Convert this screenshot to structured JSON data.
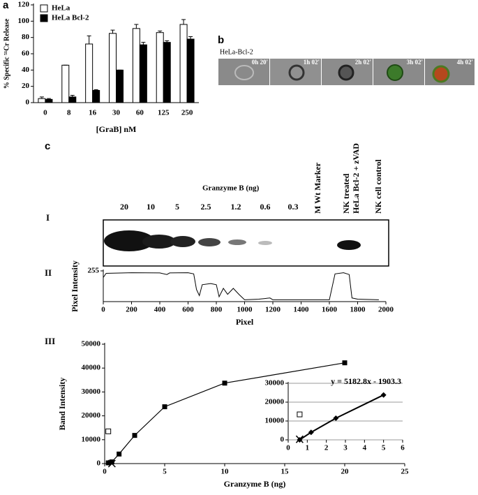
{
  "panel_labels": [
    "a",
    "b",
    "c",
    "I",
    "II",
    "III"
  ],
  "microscopy": {
    "title": "HeLa-Bcl-2",
    "timestamps": [
      "0h 20'",
      "1h 02'",
      "2h 02'",
      "3h 02'",
      "4h 02'"
    ]
  },
  "gel": {
    "title": "Granzyme B (ng)",
    "lanes": [
      "20",
      "10",
      "5",
      "2.5",
      "1.2",
      "0.6",
      "0.3"
    ],
    "marker": "M Wt Marker",
    "treated": [
      "NK treated",
      "HeLa Bcl-2 + zVAD"
    ],
    "control": "NK cell control"
  },
  "chart_data": [
    {
      "type": "bar",
      "xlabel": "[GraB] nM",
      "ylabel": "% Specific ⁵¹Cr Release",
      "categories": [
        "0",
        "8",
        "16",
        "30",
        "60",
        "125",
        "250"
      ],
      "series": [
        {
          "name": "HeLa",
          "color": "#ffffff",
          "values": [
            5,
            46,
            72,
            85,
            91,
            86,
            96
          ],
          "errors": [
            2,
            0,
            10,
            4,
            5,
            2,
            6
          ]
        },
        {
          "name": "HeLa Bcl-2",
          "color": "#000000",
          "values": [
            4,
            7,
            15,
            40,
            71,
            74,
            78
          ],
          "errors": [
            1,
            2,
            1,
            0,
            3,
            2,
            3
          ]
        }
      ],
      "ylim": [
        0,
        120
      ],
      "yticks": [
        0,
        20,
        40,
        60,
        80,
        100,
        120
      ],
      "legend": "top-left"
    },
    {
      "type": "line",
      "xlabel": "Pixel",
      "ylabel": "Pixel Intensity",
      "x": [
        0,
        20,
        200,
        400,
        450,
        470,
        600,
        640,
        660,
        680,
        700,
        760,
        800,
        820,
        850,
        880,
        920,
        960,
        1000,
        1100,
        1180,
        1200,
        1300,
        1600,
        1640,
        1700,
        1740,
        1760,
        1800,
        1950
      ],
      "series": [
        {
          "color": "#000000",
          "values": [
            200,
            235,
            240,
            238,
            225,
            238,
            240,
            230,
            100,
            50,
            140,
            150,
            140,
            40,
            110,
            60,
            110,
            60,
            15,
            20,
            30,
            15,
            15,
            15,
            230,
            240,
            225,
            30,
            20,
            15
          ]
        }
      ],
      "xlim": [
        0,
        2000
      ],
      "xticks": [
        0,
        200,
        400,
        600,
        800,
        1000,
        1200,
        1400,
        1600,
        1800,
        2000
      ],
      "ylim": [
        0,
        255
      ],
      "yticks": [
        255
      ]
    },
    {
      "type": "scatter",
      "xlabel": "Granzyme B (ng)",
      "ylabel": "Band Intensity",
      "series": [
        {
          "marker": "square",
          "color": "#000000",
          "line": true,
          "x": [
            0.3,
            0.6,
            1.2,
            2.5,
            5,
            10,
            20
          ],
          "values": [
            300,
            700,
            4000,
            11800,
            23800,
            33700,
            42200
          ]
        },
        {
          "marker": "open-square",
          "color": "#000000",
          "x": [
            0.3
          ],
          "values": [
            13500
          ]
        },
        {
          "marker": "cross",
          "color": "#000000",
          "x": [
            0.6
          ],
          "values": [
            0
          ]
        }
      ],
      "xlim": [
        0,
        25
      ],
      "xticks": [
        0,
        5,
        10,
        15,
        20,
        25
      ],
      "ylim": [
        0,
        50000
      ],
      "yticks": [
        0,
        10000,
        20000,
        30000,
        40000,
        50000
      ]
    },
    {
      "type": "scatter",
      "annotation": "y = 5182.8x - 1903.3",
      "grid": true,
      "series": [
        {
          "marker": "diamond",
          "color": "#000000",
          "line": true,
          "x": [
            0.6,
            1.2,
            2.5,
            5
          ],
          "values": [
            0,
            4000,
            11500,
            23800
          ]
        },
        {
          "marker": "open-square",
          "color": "#000000",
          "x": [
            0.6
          ],
          "values": [
            13500
          ]
        },
        {
          "marker": "cross",
          "color": "#000000",
          "x": [
            0.6
          ],
          "values": [
            300
          ]
        }
      ],
      "xlim": [
        0,
        6
      ],
      "xticks": [
        0,
        1,
        2,
        3,
        4,
        5,
        6
      ],
      "ylim": [
        0,
        30000
      ],
      "yticks": [
        0,
        10000,
        20000,
        30000
      ]
    }
  ]
}
